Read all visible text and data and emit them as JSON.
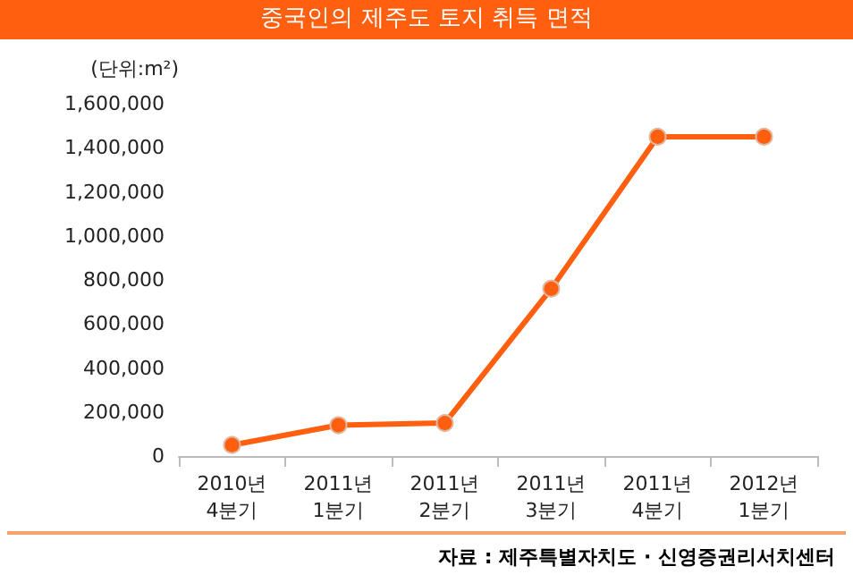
{
  "chart_data": {
    "type": "line",
    "title": "중국인의 제주도 토지 취득 면적",
    "ylabel": "(단위:m²)",
    "categories": [
      "2010년\n4분기",
      "2011년\n1분기",
      "2011년\n2분기",
      "2011년\n3분기",
      "2011년\n4분기",
      "2012년\n1분기"
    ],
    "series": [
      {
        "color": "#ff5f0f",
        "values": [
          50000,
          140000,
          150000,
          760000,
          1450000,
          1450000
        ]
      }
    ],
    "ylim": [
      0,
      1600000
    ],
    "yticks": [
      0,
      {
        "value": 200000,
        "label": "200,000"
      },
      {
        "value": 400000,
        "label": "400,000"
      },
      {
        "value": 600000,
        "label": "600,000"
      },
      {
        "value": 800000,
        "label": "800,000"
      },
      {
        "value": 1000000,
        "label": "1,000,000"
      },
      {
        "value": 1200000,
        "label": "1,200,000"
      },
      {
        "value": 1400000,
        "label": "1,400,000"
      },
      {
        "value": 1600000,
        "label": "1,600,000"
      }
    ],
    "grid": false,
    "marker": "circle",
    "line_style": "solid",
    "annotations": [
      "자료 : 제주특별자치도 · 신영증권리서치센터"
    ]
  }
}
